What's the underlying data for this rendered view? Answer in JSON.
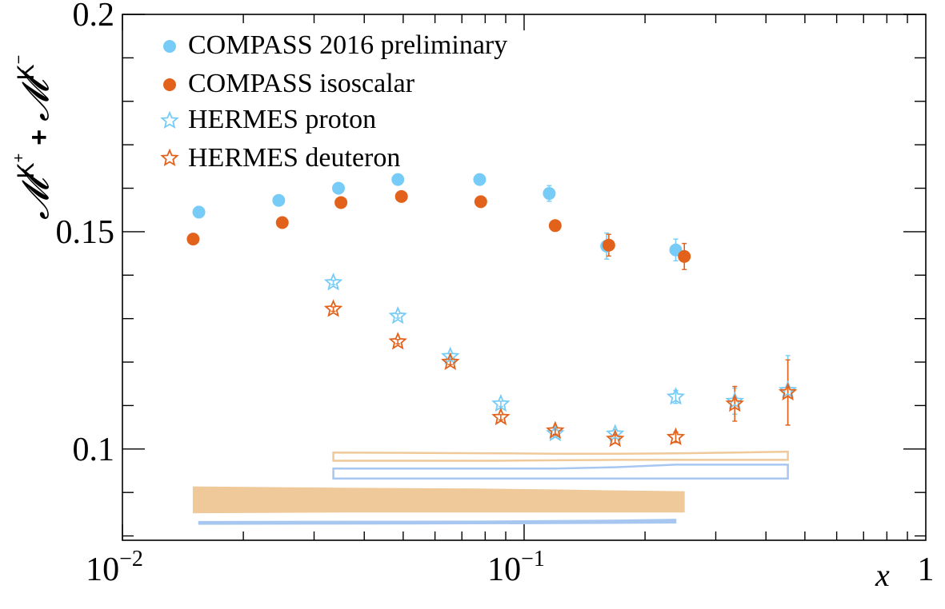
{
  "chart_data": {
    "type": "scatter",
    "xscale": "log",
    "xlim": [
      0.01,
      1
    ],
    "ylim": [
      0.079,
      0.2
    ],
    "xlabel": "x",
    "ylabel": {
      "symbol": "𝓜",
      "sup1": "K",
      "sup1_charge": "+",
      "plus": "+",
      "sup2": "K",
      "sup2_charge": "−"
    },
    "x_ticks": [
      {
        "value": 0.01,
        "base": "10",
        "exp": "−2",
        "plain": ""
      },
      {
        "value": 0.1,
        "base": "10",
        "exp": "−1",
        "plain": ""
      },
      {
        "value": 1,
        "base": "",
        "exp": "",
        "plain": "1"
      }
    ],
    "y_ticks": [
      {
        "value": 0.1,
        "label": "0.1"
      },
      {
        "value": 0.15,
        "label": "0.15"
      },
      {
        "value": 0.2,
        "label": "0.2"
      }
    ],
    "legend_position": "top-left",
    "series": [
      {
        "name": "COMPASS 2016 preliminary",
        "marker": "circle",
        "color": "#76CCF7",
        "x": [
          0.0155,
          0.0245,
          0.0345,
          0.0485,
          0.0775,
          0.1155,
          0.1605,
          0.2385
        ],
        "y": [
          0.1545,
          0.1572,
          0.16,
          0.162,
          0.162,
          0.1588,
          0.1467,
          0.1458
        ],
        "err": [
          0.0005,
          0.0005,
          0.0006,
          0.0007,
          0.0008,
          0.0018,
          0.003,
          0.0025
        ]
      },
      {
        "name": "COMPASS isoscalar",
        "marker": "circle",
        "color": "#E3621B",
        "x": [
          0.015,
          0.025,
          0.035,
          0.0495,
          0.078,
          0.1195,
          0.1625,
          0.2505
        ],
        "y": [
          0.1483,
          0.1521,
          0.1567,
          0.1581,
          0.1569,
          0.1514,
          0.1469,
          0.1443
        ],
        "err": [
          0.0005,
          0.0005,
          0.0005,
          0.0005,
          0.0006,
          0.0012,
          0.0025,
          0.003
        ]
      },
      {
        "name": "HERMES proton",
        "marker": "open-star",
        "color": "#76CCF7",
        "x": [
          0.0335,
          0.0485,
          0.0655,
          0.0875,
          0.1195,
          0.1685,
          0.2385,
          0.3345,
          0.4535
        ],
        "y": [
          0.1383,
          0.1306,
          0.1213,
          0.1104,
          0.1036,
          0.1035,
          0.112,
          0.111,
          0.1135
        ],
        "err": [
          0.0005,
          0.0005,
          0.0006,
          0.0006,
          0.0008,
          0.001,
          0.0015,
          0.003,
          0.008
        ]
      },
      {
        "name": "HERMES deuteron",
        "marker": "open-star",
        "color": "#E3621B",
        "x": [
          0.0335,
          0.0485,
          0.0655,
          0.0875,
          0.1195,
          0.1685,
          0.2385,
          0.3345,
          0.4535
        ],
        "y": [
          0.1322,
          0.1247,
          0.12,
          0.1073,
          0.1042,
          0.1023,
          0.1027,
          0.1104,
          0.113
        ],
        "err": [
          0.0005,
          0.0005,
          0.0006,
          0.0006,
          0.0008,
          0.001,
          0.0012,
          0.004,
          0.0075
        ]
      }
    ],
    "systematic_bands": [
      {
        "name": "HERMES deuteron systematics",
        "style": "outline",
        "color": "#F0C99A",
        "x": [
          0.0335,
          0.0875,
          0.1195,
          0.1685,
          0.2385,
          0.3345,
          0.4535
        ],
        "low": [
          0.0973,
          0.0973,
          0.0974,
          0.0975,
          0.0975,
          0.0975,
          0.0975
        ],
        "high": [
          0.0992,
          0.099,
          0.0989,
          0.0989,
          0.099,
          0.0992,
          0.0994
        ]
      },
      {
        "name": "HERMES proton systematics",
        "style": "outline",
        "color": "#A7C7F0",
        "x": [
          0.0335,
          0.0875,
          0.1195,
          0.1685,
          0.2385,
          0.3345,
          0.4535
        ],
        "low": [
          0.0932,
          0.0932,
          0.0932,
          0.0932,
          0.0932,
          0.0932,
          0.0932
        ],
        "high": [
          0.0955,
          0.0955,
          0.0955,
          0.0958,
          0.0964,
          0.0964,
          0.0964
        ]
      },
      {
        "name": "COMPASS isoscalar systematics",
        "style": "filled",
        "color": "#F0C99A",
        "x": [
          0.015,
          0.035,
          0.078,
          0.1195,
          0.1625,
          0.2505
        ],
        "low": [
          0.0853,
          0.0855,
          0.0855,
          0.0855,
          0.0855,
          0.0855
        ],
        "high": [
          0.0913,
          0.091,
          0.0908,
          0.0906,
          0.0904,
          0.0902
        ]
      },
      {
        "name": "COMPASS 2016 preliminary systematics",
        "style": "line",
        "color": "#A7C7F0",
        "x": [
          0.0155,
          0.0775,
          0.1605,
          0.2385
        ],
        "low": [
          0.0827,
          0.0828,
          0.0829,
          0.083
        ],
        "high": [
          0.0833,
          0.0834,
          0.0836,
          0.0838
        ]
      }
    ]
  }
}
